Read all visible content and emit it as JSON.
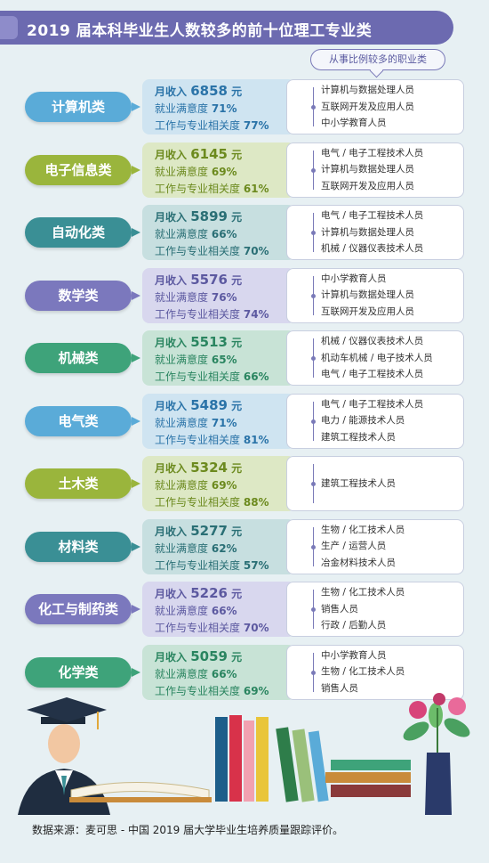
{
  "title": "2019 届本科毕业生人数较多的前十位理工专业类",
  "jobs_header": "从事比例较多的职业类",
  "labels": {
    "income": "月收入",
    "yuan": "元",
    "satisfaction": "就业满意度",
    "relevance": "工作与专业相关度"
  },
  "rows": [
    {
      "category": "计算机类",
      "income": "6858",
      "satisfaction": "71%",
      "relevance": "77%",
      "jobs": [
        "计算机与数据处理人员",
        "互联网开发及应用人员",
        "中小学教育人员"
      ],
      "color": "#5aabd8",
      "bg": "#cfe4f1",
      "text": "#2a73a8"
    },
    {
      "category": "电子信息类",
      "income": "6145",
      "satisfaction": "69%",
      "relevance": "61%",
      "jobs": [
        "电气 / 电子工程技术人员",
        "计算机与数据处理人员",
        "互联网开发及应用人员"
      ],
      "color": "#9ab53c",
      "bg": "#dde8c5",
      "text": "#6c8a1e"
    },
    {
      "category": "自动化类",
      "income": "5899",
      "satisfaction": "66%",
      "relevance": "70%",
      "jobs": [
        "电气 / 电子工程技术人员",
        "计算机与数据处理人员",
        "机械 / 仪器仪表技术人员"
      ],
      "color": "#3a8f95",
      "bg": "#c7dfe0",
      "text": "#2a6f75"
    },
    {
      "category": "数学类",
      "income": "5576",
      "satisfaction": "76%",
      "relevance": "74%",
      "jobs": [
        "中小学教育人员",
        "计算机与数据处理人员",
        "互联网开发及应用人员"
      ],
      "color": "#7b78bd",
      "bg": "#d8d7ee",
      "text": "#5c59a0"
    },
    {
      "category": "机械类",
      "income": "5513",
      "satisfaction": "65%",
      "relevance": "66%",
      "jobs": [
        "机械 / 仪器仪表技术人员",
        "机动车机械 / 电子技术人员",
        "电气 / 电子工程技术人员"
      ],
      "color": "#3ea37a",
      "bg": "#c8e3d6",
      "text": "#2a8560"
    },
    {
      "category": "电气类",
      "income": "5489",
      "satisfaction": "71%",
      "relevance": "81%",
      "jobs": [
        "电气 / 电子工程技术人员",
        "电力 / 能源技术人员",
        "建筑工程技术人员"
      ],
      "color": "#5aabd8",
      "bg": "#cfe4f1",
      "text": "#2a73a8"
    },
    {
      "category": "土木类",
      "income": "5324",
      "satisfaction": "69%",
      "relevance": "88%",
      "jobs": [
        "建筑工程技术人员"
      ],
      "color": "#9ab53c",
      "bg": "#dde8c5",
      "text": "#6c8a1e"
    },
    {
      "category": "材料类",
      "income": "5277",
      "satisfaction": "62%",
      "relevance": "57%",
      "jobs": [
        "生物 / 化工技术人员",
        "生产 / 运营人员",
        "冶金材料技术人员"
      ],
      "color": "#3a8f95",
      "bg": "#c7dfe0",
      "text": "#2a6f75"
    },
    {
      "category": "化工与制药类",
      "income": "5226",
      "satisfaction": "66%",
      "relevance": "70%",
      "jobs": [
        "生物 / 化工技术人员",
        "销售人员",
        "行政 / 后勤人员"
      ],
      "color": "#7b78bd",
      "bg": "#d8d7ee",
      "text": "#5c59a0"
    },
    {
      "category": "化学类",
      "income": "5059",
      "satisfaction": "66%",
      "relevance": "69%",
      "jobs": [
        "中小学教育人员",
        "生物 / 化工技术人员",
        "销售人员"
      ],
      "color": "#3ea37a",
      "bg": "#c8e3d6",
      "text": "#2a8560"
    }
  ],
  "source": "数据来源：麦可思 - 中国 2019 届大学毕业生培养质量跟踪评价。"
}
